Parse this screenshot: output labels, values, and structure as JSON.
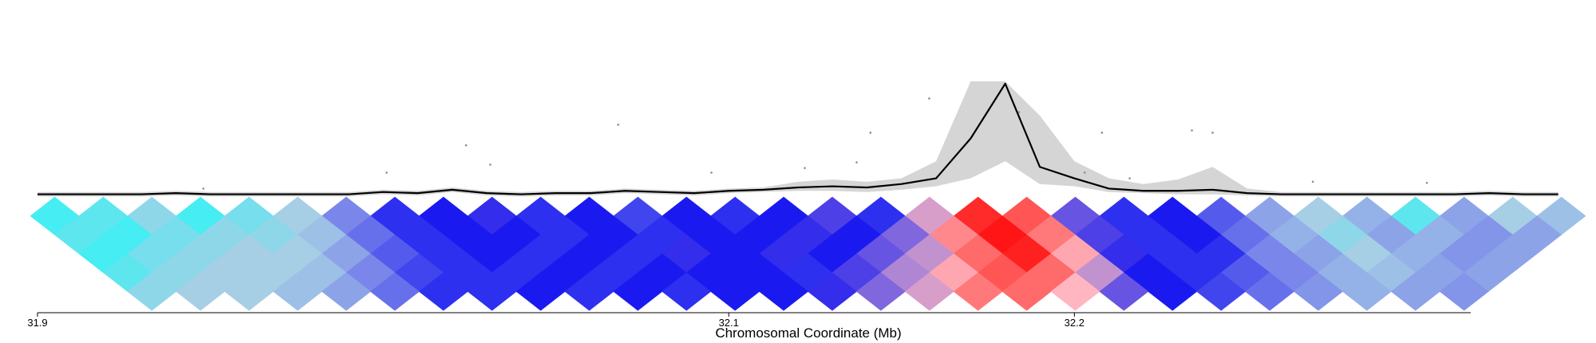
{
  "chart_data": {
    "type": "line",
    "xlabel": "Chromosomal Coordinate (Mb)",
    "xlim": [
      31.9,
      32.35
    ],
    "xticks": [
      31.9,
      32.1,
      32.2
    ],
    "ylim": [
      0,
      100
    ],
    "line": {
      "color": "#000000",
      "x": [
        31.9,
        31.91,
        31.92,
        31.93,
        31.94,
        31.95,
        31.96,
        31.97,
        31.98,
        31.99,
        32.0,
        32.01,
        32.02,
        32.03,
        32.04,
        32.05,
        32.06,
        32.07,
        32.08,
        32.09,
        32.1,
        32.11,
        32.12,
        32.13,
        32.14,
        32.15,
        32.16,
        32.17,
        32.18,
        32.19,
        32.2,
        32.21,
        32.22,
        32.23,
        32.24,
        32.25,
        32.26,
        32.27,
        32.28,
        32.29,
        32.3,
        32.31,
        32.32,
        32.33,
        32.34
      ],
      "values": [
        1,
        1,
        1,
        1,
        2,
        1,
        1,
        1,
        1,
        1,
        3,
        2,
        5,
        2,
        1,
        2,
        2,
        4,
        3,
        2,
        4,
        5,
        7,
        8,
        7,
        10,
        15,
        50,
        98,
        25,
        15,
        6,
        4,
        4,
        5,
        2,
        1,
        1,
        1,
        1,
        1,
        1,
        2,
        1,
        1
      ]
    },
    "band": {
      "color": "#d3d3d3",
      "upper": [
        3,
        3,
        3,
        3,
        4,
        3,
        3,
        3,
        3,
        3,
        5,
        4,
        7,
        4,
        3,
        4,
        4,
        6,
        5,
        4,
        6,
        7,
        12,
        14,
        12,
        15,
        30,
        100,
        100,
        70,
        30,
        15,
        10,
        14,
        25,
        6,
        3,
        3,
        3,
        3,
        3,
        3,
        4,
        3,
        3
      ],
      "lower": [
        -1,
        -1,
        -1,
        -1,
        0,
        -1,
        -1,
        -1,
        -1,
        -1,
        1,
        0,
        3,
        0,
        -1,
        0,
        0,
        2,
        1,
        0,
        2,
        3,
        4,
        4,
        3,
        5,
        8,
        15,
        30,
        10,
        8,
        3,
        2,
        1,
        1,
        0,
        -1,
        -1,
        -1,
        -1,
        -1,
        -1,
        0,
        -1,
        -1
      ]
    },
    "points": {
      "color": "#8c8c8c",
      "x": [
        32.068,
        32.158,
        32.141,
        32.208,
        32.234,
        32.24,
        32.024,
        32.031,
        32.001,
        32.184,
        32.203,
        32.095,
        32.122,
        32.269,
        32.302,
        31.948,
        32.216,
        32.137
      ],
      "values": [
        62,
        85,
        55,
        55,
        57,
        55,
        44,
        27,
        20,
        73,
        20,
        20,
        24,
        12,
        11,
        6,
        15,
        29
      ]
    },
    "heatmap": {
      "color_stops": [
        {
          "value": -2,
          "color": "#2ef5f5"
        },
        {
          "value": -1.5,
          "color": "#a6cfe6"
        },
        {
          "value": -1,
          "color": "#7a86ea"
        },
        {
          "value": -0.5,
          "color": "#1a1af0"
        },
        {
          "value": 0,
          "color": "#9a7ad8"
        },
        {
          "value": 0.5,
          "color": "#ffb6c1"
        },
        {
          "value": 1,
          "color": "#ff6a6a"
        },
        {
          "value": 2,
          "color": "#ff0000"
        }
      ],
      "rows": [
        [
          -1.9,
          -1.8,
          -1.6,
          -1.9,
          -1.7,
          -1.5,
          -1.0,
          -0.6,
          -0.5,
          -0.4,
          -0.6,
          -0.5,
          -0.7,
          -0.5,
          -0.6,
          -0.5,
          -0.3,
          -0.6,
          0.3,
          1.6,
          1.2,
          -0.2,
          -0.6,
          -0.5,
          -0.8,
          -1.2,
          -1.5,
          -1.3,
          -1.8,
          -1.2,
          -1.5,
          -1.4
        ],
        [
          -1.8,
          -1.9,
          -1.7,
          -1.6,
          -1.6,
          -1.4,
          -0.9,
          -0.6,
          -0.5,
          -0.5,
          -0.6,
          -0.5,
          -0.6,
          -0.5,
          -0.5,
          -0.4,
          -0.5,
          -0.1,
          0.8,
          1.8,
          0.9,
          -0.3,
          -0.6,
          -0.5,
          -0.9,
          -1.3,
          -1.6,
          -1.2,
          -1.3,
          -1.1,
          -1.2
        ],
        [
          -1.9,
          -1.7,
          -1.6,
          -1.5,
          -1.5,
          -1.2,
          -0.8,
          -0.6,
          -0.5,
          -0.6,
          -0.5,
          -0.6,
          -0.4,
          -0.5,
          -0.4,
          -0.5,
          -0.2,
          0.2,
          1.0,
          1.7,
          0.6,
          -0.4,
          -0.6,
          -0.6,
          -1.0,
          -1.2,
          -1.5,
          -1.3,
          -1.1,
          -1.2
        ],
        [
          -1.8,
          -1.6,
          -1.5,
          -1.5,
          -1.4,
          -1.0,
          -0.7,
          -0.6,
          -0.6,
          -0.5,
          -0.6,
          -0.5,
          -0.5,
          -0.5,
          -0.6,
          -0.3,
          0.1,
          0.6,
          1.2,
          1.0,
          0.2,
          -0.5,
          -0.6,
          -0.8,
          -1.0,
          -1.3,
          -1.4,
          -1.2,
          -1.2
        ],
        [
          -1.6,
          -1.5,
          -1.5,
          -1.4,
          -1.2,
          -0.9,
          -0.6,
          -0.6,
          -0.5,
          -0.6,
          -0.5,
          -0.6,
          -0.5,
          -0.5,
          -0.4,
          -0.1,
          0.3,
          0.9,
          1.0,
          0.5,
          -0.2,
          -0.5,
          -0.7,
          -0.9,
          -1.1,
          -1.3,
          -1.2,
          -1.1
        ]
      ]
    }
  }
}
